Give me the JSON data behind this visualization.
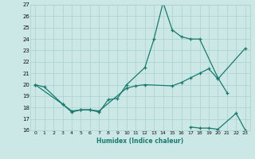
{
  "xlabel": "Humidex (Indice chaleur)",
  "line1_x": [
    0,
    1,
    3,
    4,
    5,
    6,
    7,
    8,
    9,
    10,
    12,
    13,
    14,
    15,
    16,
    17,
    18,
    20,
    21
  ],
  "line1_y": [
    20.0,
    19.8,
    18.3,
    17.6,
    17.8,
    17.8,
    17.6,
    18.7,
    18.8,
    20.0,
    21.5,
    24.0,
    27.2,
    24.8,
    24.2,
    24.0,
    24.0,
    20.6,
    19.3
  ],
  "line2_x": [
    0,
    3,
    4,
    5,
    6,
    7,
    10,
    11,
    12,
    15,
    16,
    17,
    18,
    19,
    20,
    23
  ],
  "line2_y": [
    20.0,
    18.3,
    17.7,
    17.8,
    17.8,
    17.7,
    19.7,
    19.9,
    20.0,
    19.9,
    20.2,
    20.6,
    21.0,
    21.4,
    20.5,
    23.2
  ],
  "line3_x": [
    17,
    18,
    19,
    20,
    22,
    23
  ],
  "line3_y": [
    16.3,
    16.2,
    16.2,
    16.1,
    17.5,
    16.0
  ],
  "line_color": "#1a7a6e",
  "bg_color": "#cce8e6",
  "grid_color": "#aacfcd",
  "ylim": [
    16,
    27
  ],
  "xlim": [
    -0.5,
    23.5
  ],
  "yticks": [
    16,
    17,
    18,
    19,
    20,
    21,
    22,
    23,
    24,
    25,
    26,
    27
  ],
  "xticks": [
    0,
    1,
    2,
    3,
    4,
    5,
    6,
    7,
    8,
    9,
    10,
    11,
    12,
    13,
    14,
    15,
    16,
    17,
    18,
    19,
    20,
    21,
    22,
    23
  ]
}
